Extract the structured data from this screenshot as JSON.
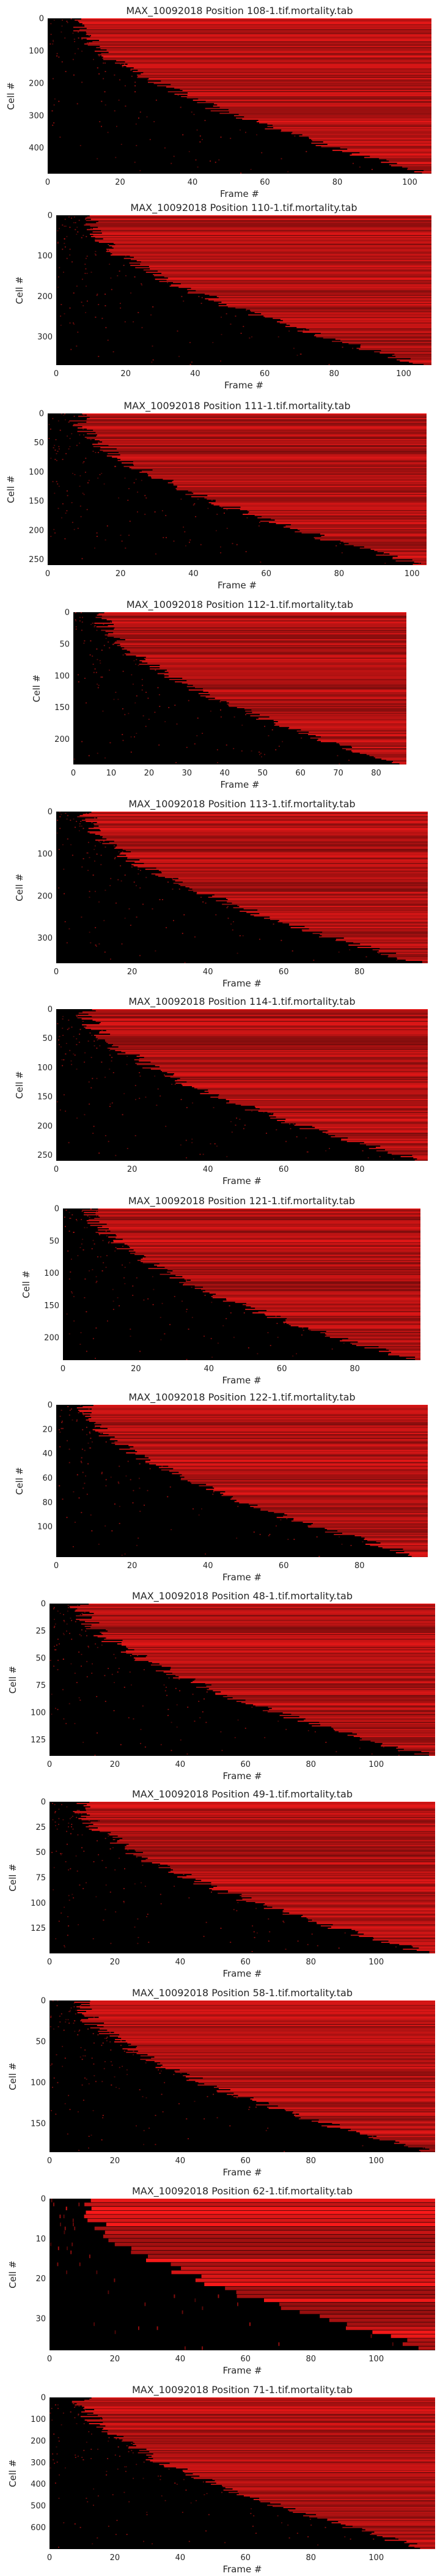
{
  "colors": {
    "background": "#000000",
    "mark": "#ff1a1a",
    "text": "#262626"
  },
  "chart_data": [
    {
      "type": "heatmap",
      "title": "MAX_10092018 Position 108-1.tif.mortality.tab",
      "xlabel": "Frame #",
      "ylabel": "Cell #",
      "xlim": [
        0,
        106
      ],
      "ylim": [
        480,
        0
      ],
      "xticks": [
        0,
        20,
        40,
        60,
        80,
        100
      ],
      "yticks": [
        0,
        100,
        200,
        300,
        400
      ],
      "n_cells": 480,
      "n_frames": 106,
      "colormap": "black-to-red"
    },
    {
      "type": "heatmap",
      "title": "MAX_10092018 Position 110-1.tif.mortality.tab",
      "xlabel": "Frame #",
      "ylabel": "Cell #",
      "xlim": [
        0,
        108
      ],
      "ylim": [
        370,
        0
      ],
      "xticks": [
        0,
        20,
        40,
        60,
        80,
        100
      ],
      "yticks": [
        0,
        100,
        200,
        300
      ],
      "n_cells": 370,
      "n_frames": 108,
      "colormap": "black-to-red"
    },
    {
      "type": "heatmap",
      "title": "MAX_10092018 Position 111-1.tif.mortality.tab",
      "xlabel": "Frame #",
      "ylabel": "Cell #",
      "xlim": [
        0,
        104
      ],
      "ylim": [
        260,
        0
      ],
      "xticks": [
        0,
        20,
        40,
        60,
        80,
        100
      ],
      "yticks": [
        0,
        50,
        100,
        150,
        200,
        250
      ],
      "n_cells": 260,
      "n_frames": 104,
      "colormap": "black-to-red"
    },
    {
      "type": "heatmap",
      "title": "MAX_10092018 Position 112-1.tif.mortality.tab",
      "xlabel": "Frame #",
      "ylabel": "Cell #",
      "xlim": [
        0,
        88
      ],
      "ylim": [
        240,
        0
      ],
      "xticks": [
        0,
        10,
        20,
        30,
        40,
        50,
        60,
        70,
        80
      ],
      "yticks": [
        0,
        50,
        100,
        150,
        200
      ],
      "n_cells": 240,
      "n_frames": 88,
      "colormap": "black-to-red"
    },
    {
      "type": "heatmap",
      "title": "MAX_10092018 Position 113-1.tif.mortality.tab",
      "xlabel": "Frame #",
      "ylabel": "Cell #",
      "xlim": [
        0,
        98
      ],
      "ylim": [
        360,
        0
      ],
      "xticks": [
        0,
        20,
        40,
        60,
        80
      ],
      "yticks": [
        0,
        100,
        200,
        300
      ],
      "n_cells": 360,
      "n_frames": 98,
      "colormap": "black-to-red"
    },
    {
      "type": "heatmap",
      "title": "MAX_10092018 Position 114-1.tif.mortality.tab",
      "xlabel": "Frame #",
      "ylabel": "Cell #",
      "xlim": [
        0,
        98
      ],
      "ylim": [
        260,
        0
      ],
      "xticks": [
        0,
        20,
        40,
        60,
        80
      ],
      "yticks": [
        0,
        50,
        100,
        150,
        200,
        250
      ],
      "n_cells": 260,
      "n_frames": 98,
      "colormap": "black-to-red"
    },
    {
      "type": "heatmap",
      "title": "MAX_10092018 Position 121-1.tif.mortality.tab",
      "xlabel": "Frame #",
      "ylabel": "Cell #",
      "xlim": [
        0,
        98
      ],
      "ylim": [
        235,
        0
      ],
      "xticks": [
        0,
        20,
        40,
        60,
        80
      ],
      "yticks": [
        0,
        50,
        100,
        150,
        200
      ],
      "n_cells": 235,
      "n_frames": 98,
      "colormap": "black-to-red"
    },
    {
      "type": "heatmap",
      "title": "MAX_10092018 Position 122-1.tif.mortality.tab",
      "xlabel": "Frame #",
      "ylabel": "Cell #",
      "xlim": [
        0,
        98
      ],
      "ylim": [
        125,
        0
      ],
      "xticks": [
        0,
        20,
        40,
        60,
        80
      ],
      "yticks": [
        0,
        20,
        40,
        60,
        80,
        100
      ],
      "n_cells": 125,
      "n_frames": 98,
      "colormap": "black-to-red"
    },
    {
      "type": "heatmap",
      "title": "MAX_10092018 Position 48-1.tif.mortality.tab",
      "xlabel": "Frame #",
      "ylabel": "Cell #",
      "xlim": [
        0,
        118
      ],
      "ylim": [
        140,
        0
      ],
      "xticks": [
        0,
        20,
        40,
        60,
        80,
        100
      ],
      "yticks": [
        0,
        25,
        50,
        75,
        100,
        125
      ],
      "n_cells": 140,
      "n_frames": 118,
      "colormap": "black-to-red"
    },
    {
      "type": "heatmap",
      "title": "MAX_10092018 Position 49-1.tif.mortality.tab",
      "xlabel": "Frame #",
      "ylabel": "Cell #",
      "xlim": [
        0,
        118
      ],
      "ylim": [
        150,
        0
      ],
      "xticks": [
        0,
        20,
        40,
        60,
        80,
        100
      ],
      "yticks": [
        0,
        25,
        50,
        75,
        100,
        125
      ],
      "n_cells": 150,
      "n_frames": 118,
      "colormap": "black-to-red"
    },
    {
      "type": "heatmap",
      "title": "MAX_10092018 Position 58-1.tif.mortality.tab",
      "xlabel": "Frame #",
      "ylabel": "Cell #",
      "xlim": [
        0,
        118
      ],
      "ylim": [
        185,
        0
      ],
      "xticks": [
        0,
        20,
        40,
        60,
        80,
        100
      ],
      "yticks": [
        0,
        50,
        100,
        150
      ],
      "n_cells": 185,
      "n_frames": 118,
      "colormap": "black-to-red"
    },
    {
      "type": "heatmap",
      "title": "MAX_10092018 Position 62-1.tif.mortality.tab",
      "xlabel": "Frame #",
      "ylabel": "Cell #",
      "xlim": [
        0,
        118
      ],
      "ylim": [
        38,
        0
      ],
      "xticks": [
        0,
        20,
        40,
        60,
        80,
        100
      ],
      "yticks": [
        0,
        10,
        20,
        30
      ],
      "n_cells": 38,
      "n_frames": 118,
      "colormap": "black-to-red"
    },
    {
      "type": "heatmap",
      "title": "MAX_10092018 Position 71-1.tif.mortality.tab",
      "xlabel": "Frame #",
      "ylabel": "Cell #",
      "xlim": [
        0,
        118
      ],
      "ylim": [
        700,
        0
      ],
      "xticks": [
        0,
        20,
        40,
        60,
        80,
        100
      ],
      "yticks": [
        0,
        100,
        200,
        300,
        400,
        500,
        600
      ],
      "n_cells": 700,
      "n_frames": 118,
      "colormap": "black-to-red"
    }
  ]
}
